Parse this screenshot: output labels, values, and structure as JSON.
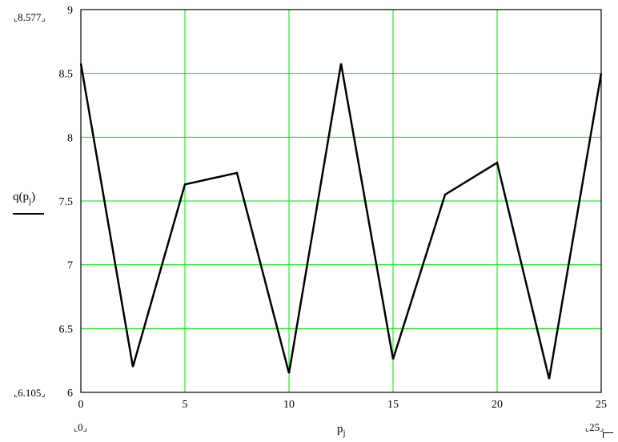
{
  "chart_data": {
    "type": "line",
    "title": "",
    "xlim": [
      0,
      25
    ],
    "ylim": [
      6,
      9
    ],
    "x_ticks": [
      "0",
      "5",
      "10",
      "15",
      "20",
      "25"
    ],
    "y_ticks": [
      "6",
      "6.5",
      "7",
      "7.5",
      "8",
      "8.5",
      "9"
    ],
    "grid": true,
    "grid_color": "#00dd00",
    "line_color": "#000000",
    "x": [
      0,
      2.5,
      5,
      7.5,
      10,
      12.5,
      15,
      17.5,
      20,
      22.5,
      25
    ],
    "y": [
      8.577,
      6.2,
      7.63,
      7.72,
      6.15,
      8.577,
      6.26,
      7.55,
      7.8,
      6.105,
      8.5
    ],
    "ylabel": {
      "main": "q(p",
      "sub": "j",
      "close": ")"
    },
    "xlabel": {
      "main": "p",
      "sub": "j"
    },
    "y_range_labels": {
      "max": "8.577",
      "min": "6.105"
    },
    "x_range_labels": {
      "min": "0",
      "max": "25"
    }
  }
}
